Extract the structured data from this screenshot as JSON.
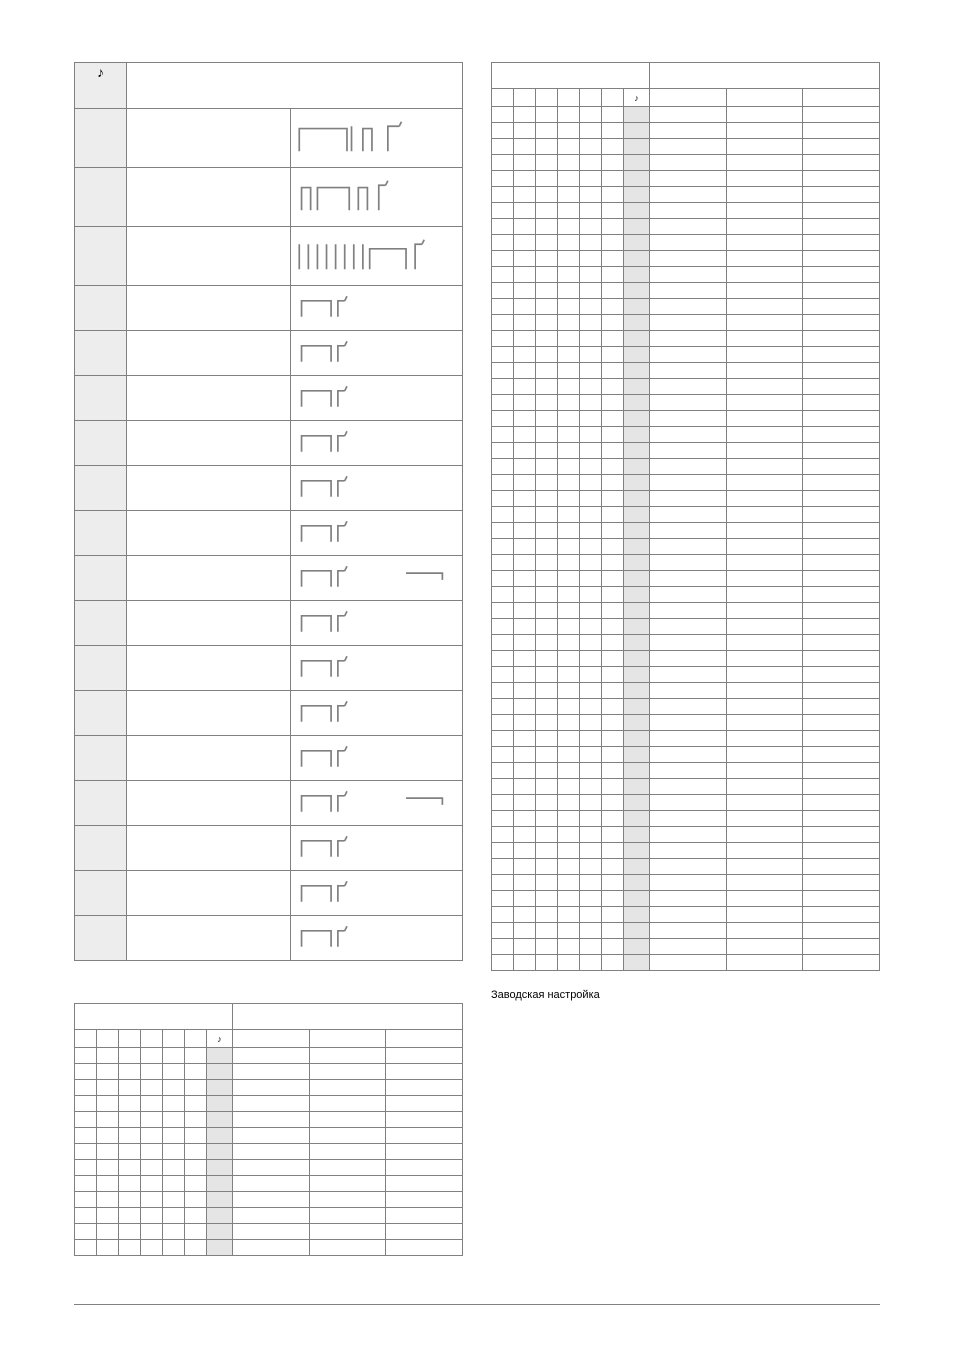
{
  "note_symbol": "♪",
  "footnote": "Заводская настройка",
  "rhythm_rows": 18,
  "map_a_rows": 13,
  "map_b_rows": 54,
  "colors": {
    "border": "#808080",
    "shade": "#ededed",
    "note_shade": "#e5e5e5",
    "bg": "#ffffff"
  }
}
